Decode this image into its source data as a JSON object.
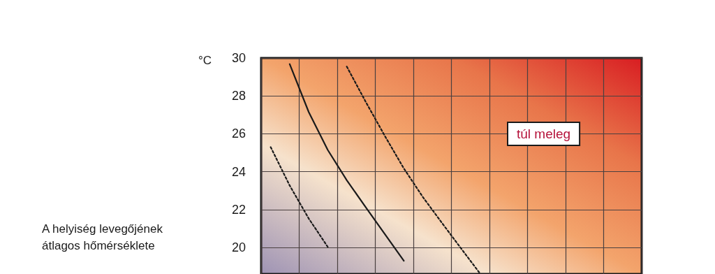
{
  "chart_data": {
    "type": "line",
    "annotations": [
      "A helyiség levegőjének\nátlagos hőmérséklete",
      "°C",
      "túl meleg"
    ],
    "categories": [
      null,
      null,
      null,
      null,
      null,
      null,
      null,
      null,
      null,
      null,
      null,
      null,
      null,
      null,
      null,
      null,
      null,
      null,
      null,
      null
    ],
    "series": [
      {
        "color": "#1a1a1a",
        "line_style": "dashed",
        "values": [
          25.3,
          23.27,
          21.53,
          20.03,
          null,
          null,
          null,
          null,
          null,
          null,
          null,
          null,
          null,
          null,
          null,
          null,
          null,
          null,
          null,
          null
        ]
      },
      {
        "color": "#1a1a1a",
        "line_style": "solid",
        "values": [
          null,
          29.68,
          27.15,
          25.15,
          23.55,
          22.12,
          20.71,
          19.3,
          null,
          null,
          null,
          null,
          null,
          null,
          null,
          null,
          null,
          null,
          null,
          null
        ]
      },
      {
        "color": "#1a1a1a",
        "line_style": "dashed",
        "values": [
          null,
          null,
          null,
          null,
          29.55,
          27.68,
          25.89,
          24.17,
          22.66,
          21.3,
          19.96,
          18.63,
          null,
          null,
          null,
          null,
          null,
          null,
          null,
          null
        ]
      }
    ],
    "ylim": [
      18.6,
      30
    ],
    "yticks": [
      20,
      22,
      24,
      26,
      28,
      30
    ],
    "grid": true,
    "marker": "none",
    "tick_labels": "y"
  }
}
